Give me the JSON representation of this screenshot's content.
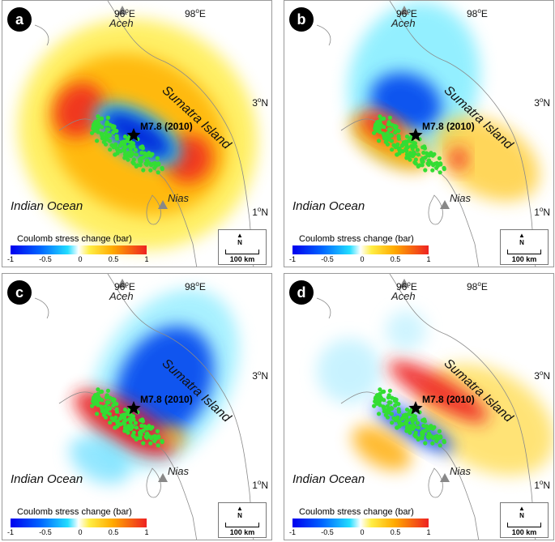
{
  "panels": [
    {
      "id": "a",
      "label": "a",
      "pattern": "positive"
    },
    {
      "id": "b",
      "label": "b",
      "pattern": "negative-north"
    },
    {
      "id": "c",
      "label": "c",
      "pattern": "negative-east"
    },
    {
      "id": "d",
      "label": "d",
      "pattern": "mixed"
    }
  ],
  "labels": {
    "lon_96": "96",
    "lon_98": "98",
    "lon_unit": "E",
    "lat_3": "3",
    "lat_1": "1",
    "lat_unit": "N",
    "aceh": "Aceh",
    "nias": "Nias",
    "sumatra": "Sumatra Island",
    "ocean": "Indian Ocean",
    "earthquake": "M7.8 (2010)"
  },
  "legend": {
    "title": "Coulomb stress change (bar)",
    "ticks": [
      "-1",
      "-0.5",
      "0",
      "0.5",
      "1"
    ]
  },
  "scalebar": {
    "label": "100 km",
    "north": "N"
  },
  "colors": {
    "positive": "#ee2222",
    "negative": "#0033dd",
    "aftershock": "#33dd33"
  }
}
